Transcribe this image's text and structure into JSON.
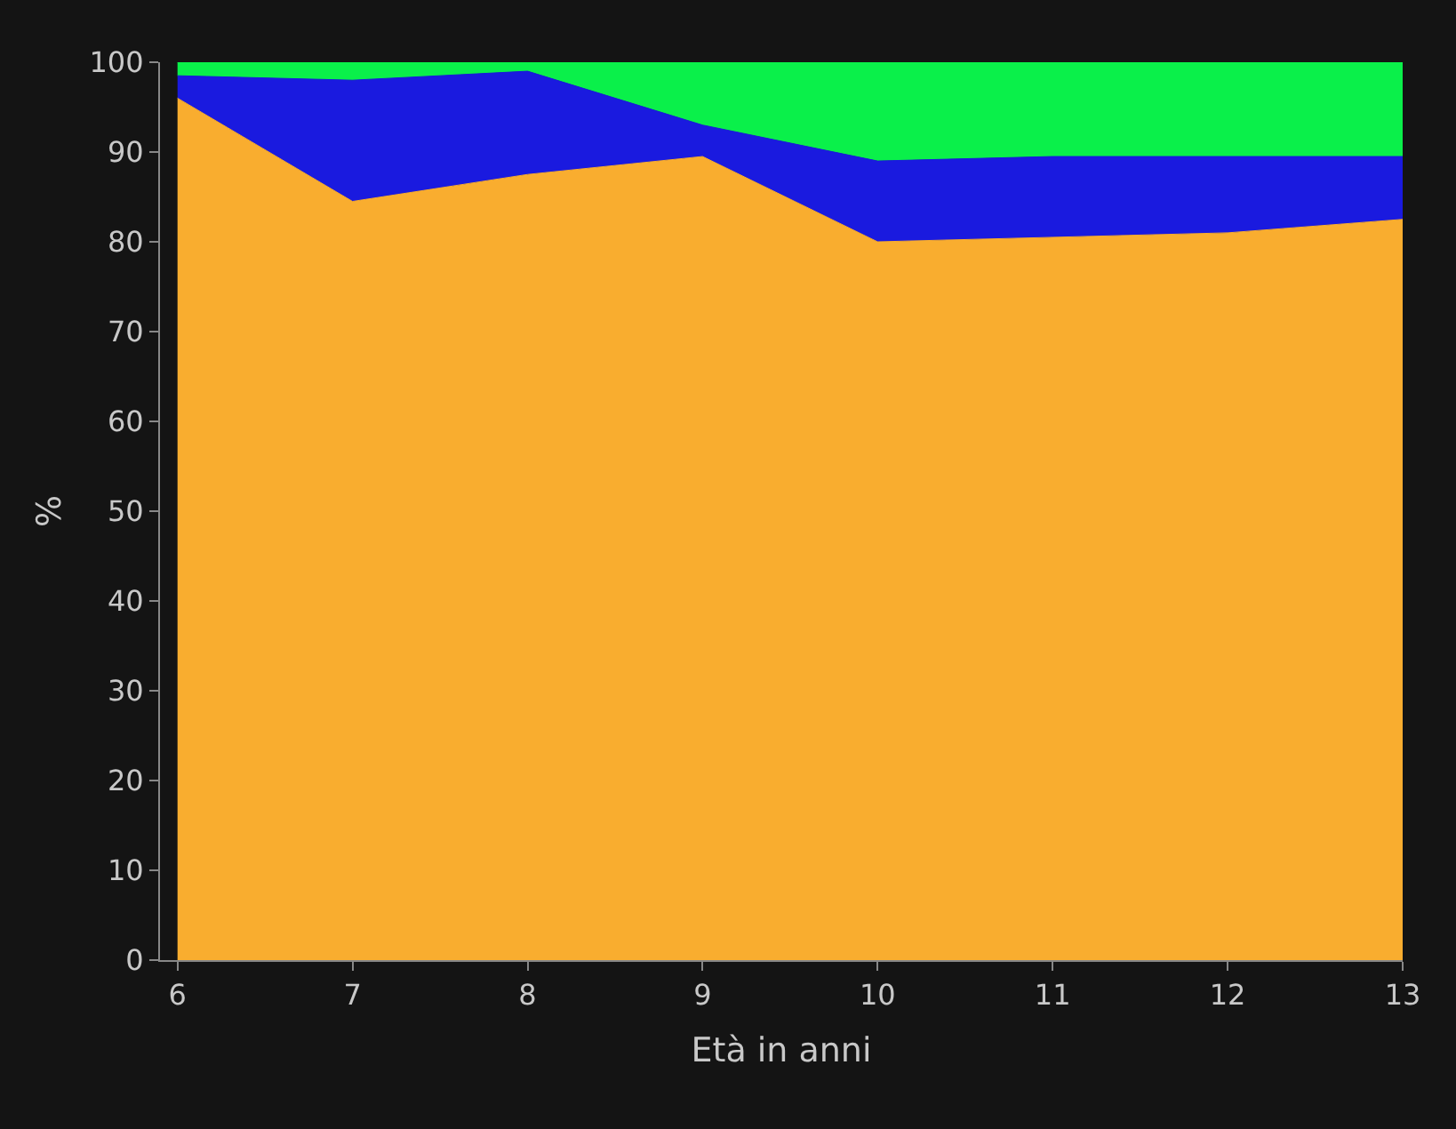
{
  "chart_data": {
    "type": "area",
    "stacked": true,
    "xlabel": "Età in anni",
    "ylabel": "%",
    "x": [
      6,
      7,
      8,
      9,
      10,
      11,
      12,
      13
    ],
    "series": [
      {
        "color": "#f9ad2f",
        "values": [
          96,
          84.5,
          87.5,
          89.5,
          80,
          80.5,
          81,
          82.5
        ]
      },
      {
        "color": "#1a1adf",
        "values": [
          2.5,
          13.5,
          11.5,
          3.5,
          9,
          9,
          8.5,
          7
        ]
      },
      {
        "color": "#0af04a",
        "values": [
          1.5,
          2,
          1,
          7,
          11,
          10.5,
          10.5,
          10.5
        ]
      }
    ],
    "xlim": [
      5.9,
      13
    ],
    "xticks": [
      6,
      7,
      8,
      9,
      10,
      11,
      12,
      13
    ],
    "ylim": [
      0,
      100
    ],
    "yticks": [
      0,
      10,
      20,
      30,
      40,
      50,
      60,
      70,
      80,
      90,
      100
    ],
    "grid": false
  }
}
